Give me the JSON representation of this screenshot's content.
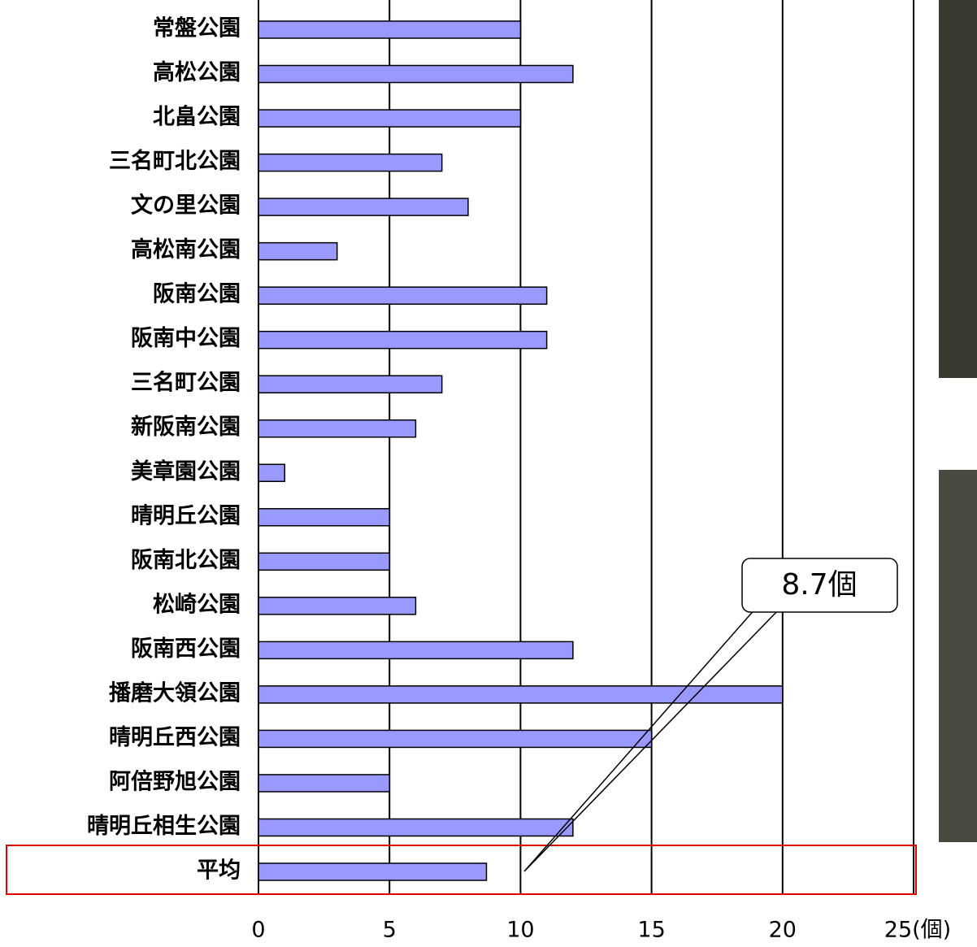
{
  "chart_data": {
    "type": "bar",
    "orientation": "horizontal",
    "categories": [
      "常盤公園",
      "高松公園",
      "北畠公園",
      "三名町北公園",
      "文の里公園",
      "高松南公園",
      "阪南公園",
      "阪南中公園",
      "三名町公園",
      "新阪南公園",
      "美章園公園",
      "晴明丘公園",
      "阪南北公園",
      "松崎公園",
      "阪南西公園",
      "播磨大領公園",
      "晴明丘西公園",
      "阿倍野旭公園",
      "晴明丘相生公園",
      "平均"
    ],
    "values": [
      10,
      12,
      10,
      7,
      8,
      3,
      11,
      11,
      7,
      6,
      1,
      5,
      5,
      6,
      12,
      20,
      15,
      5,
      12,
      8.7
    ],
    "color": "#9999ff",
    "xlim": [
      0,
      25
    ],
    "xticks": [
      0,
      5,
      10,
      15,
      20,
      {
        "value": 25,
        "label": "25(個)"
      }
    ],
    "grid": true,
    "annotation": "8.7個"
  }
}
